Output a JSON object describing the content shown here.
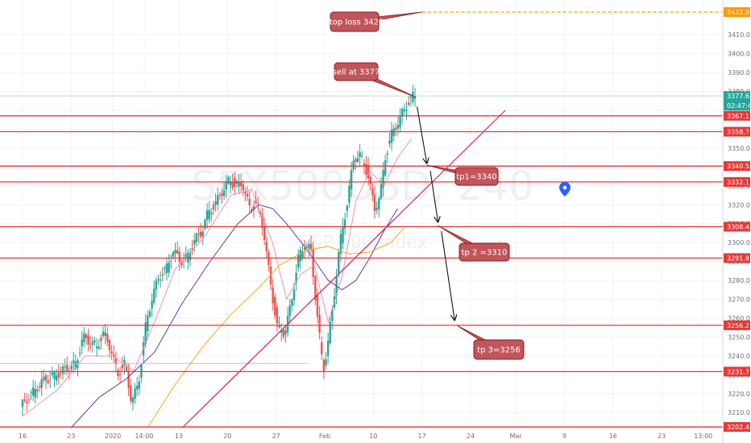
{
  "chart_data": {
    "type": "candlestick",
    "watermark": {
      "symbol": "SPX500USD, 240",
      "description": "S&P 500 Index"
    },
    "y_axis": {
      "ylim": [
        3202,
        3425
      ],
      "ticks": [
        3210,
        3220,
        3230,
        3240,
        3250,
        3260,
        3270,
        3280,
        3290,
        3300,
        3310,
        3320,
        3330,
        3340,
        3350,
        3360,
        3370,
        3380,
        3390,
        3400,
        3410
      ]
    },
    "x_axis": {
      "ticks": [
        {
          "label": "16",
          "pos": 0.0
        },
        {
          "label": "23",
          "pos": 7.0
        },
        {
          "label": "2020",
          "pos": 13.0
        },
        {
          "label": "14:00",
          "pos": 17.5
        },
        {
          "label": "13",
          "pos": 22.5
        },
        {
          "label": "20",
          "pos": 29.5
        },
        {
          "label": "27",
          "pos": 36.5
        },
        {
          "label": "Feb",
          "pos": 43.5
        },
        {
          "label": "10",
          "pos": 50.5
        },
        {
          "label": "17",
          "pos": 57.5
        },
        {
          "label": "24",
          "pos": 64.5
        },
        {
          "label": "Mar",
          "pos": 71.0
        },
        {
          "label": "9",
          "pos": 78.0
        },
        {
          "label": "16",
          "pos": 85.0
        },
        {
          "label": "23",
          "pos": 92.0
        },
        {
          "label": "13:00",
          "pos": 98.0
        }
      ]
    },
    "price_levels": [
      {
        "label": "3367.1",
        "value": 3367.1
      },
      {
        "label": "3358.7",
        "value": 3358.7
      },
      {
        "label": "3340.5",
        "value": 3340.5
      },
      {
        "label": "3332.1",
        "value": 3332.1
      },
      {
        "label": "3308.4",
        "value": 3308.4
      },
      {
        "label": "3291.8",
        "value": 3291.8
      },
      {
        "label": "3256.2",
        "value": 3256.2
      },
      {
        "label": "3231.7",
        "value": 3231.7
      },
      {
        "label": "3202.4",
        "value": 3202.4
      }
    ],
    "stop_level": {
      "label": "3422.0",
      "value": 3422.0
    },
    "last_price": {
      "label": "3377.6",
      "value": 3377.6
    },
    "countdown": "02:47:40",
    "annotations": [
      {
        "text": "stop loss 3422"
      },
      {
        "text": "sell at 3377"
      },
      {
        "text": "tp1=3340"
      },
      {
        "text": "tp 2 =3310"
      },
      {
        "text": "tp 3=3256"
      }
    ],
    "colors": {
      "up": "#26a69a",
      "down": "#ef5350",
      "level": "#e53935",
      "stop": "#ff9800",
      "ma_fast": "#f48fb1",
      "ma_mid": "#5e35b1",
      "ma_slow": "#f5a623",
      "trendline": "#d81b60",
      "annotation_bg": "#c0555a",
      "annotation_border": "#8e1c22",
      "current_price": "#26a69a",
      "marker": "#2962ff"
    }
  }
}
